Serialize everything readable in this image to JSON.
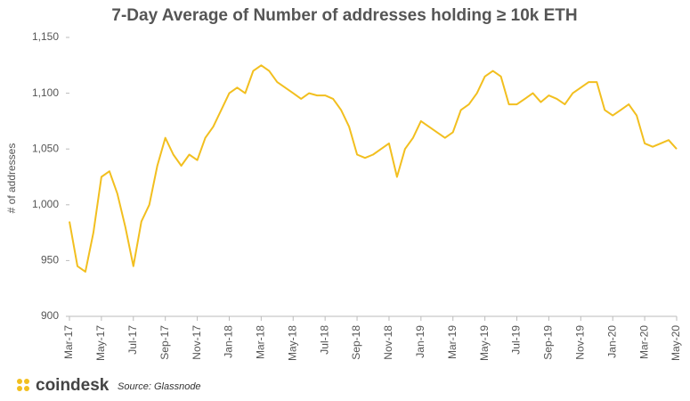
{
  "chart_data": {
    "type": "line",
    "title": "7-Day Average of Number of addresses holding ≥ 10k ETH",
    "y_label": "# of addresses",
    "source": "Source: Glassnode",
    "brand": "coindesk",
    "categories": [
      "Mar-17",
      null,
      null,
      null,
      "May-17",
      null,
      null,
      null,
      "Jul-17",
      null,
      null,
      null,
      "Sep-17",
      null,
      null,
      null,
      "Nov-17",
      null,
      null,
      null,
      "Jan-18",
      null,
      null,
      null,
      "Mar-18",
      null,
      null,
      null,
      "May-18",
      null,
      null,
      null,
      "Jul-18",
      null,
      null,
      null,
      "Sep-18",
      null,
      null,
      null,
      "Nov-18",
      null,
      null,
      null,
      "Jan-19",
      null,
      null,
      null,
      "Mar-19",
      null,
      null,
      null,
      "May-19",
      null,
      null,
      null,
      "Jul-19",
      null,
      null,
      null,
      "Sep-19",
      null,
      null,
      null,
      "Nov-19",
      null,
      null,
      null,
      "Jan-20",
      null,
      null,
      null,
      "Mar-20",
      null,
      null,
      null,
      "May-20"
    ],
    "series": [
      {
        "name": "Number of addresses holding ≥ 10k ETH",
        "color": "#f2bf1f",
        "values": [
          985,
          945,
          940,
          975,
          1025,
          1030,
          1010,
          980,
          945,
          985,
          1000,
          1035,
          1060,
          1045,
          1035,
          1045,
          1040,
          1060,
          1070,
          1085,
          1100,
          1105,
          1100,
          1120,
          1125,
          1120,
          1110,
          1105,
          1100,
          1095,
          1100,
          1098,
          1098,
          1095,
          1085,
          1070,
          1045,
          1042,
          1045,
          1050,
          1055,
          1025,
          1050,
          1060,
          1075,
          1070,
          1065,
          1060,
          1065,
          1085,
          1090,
          1100,
          1115,
          1120,
          1115,
          1090,
          1090,
          1095,
          1100,
          1092,
          1098,
          1095,
          1090,
          1100,
          1105,
          1110,
          1110,
          1085,
          1080,
          1085,
          1090,
          1080,
          1055,
          1052,
          1055,
          1058,
          1050
        ]
      }
    ],
    "ylim": [
      900,
      1150
    ],
    "yticks": [
      900,
      950,
      {
        "value": 1000,
        "label": "1,000"
      },
      {
        "value": 1050,
        "label": "1,050"
      },
      {
        "value": 1100,
        "label": "1,100"
      },
      {
        "value": 1150,
        "label": "1,150"
      }
    ]
  }
}
